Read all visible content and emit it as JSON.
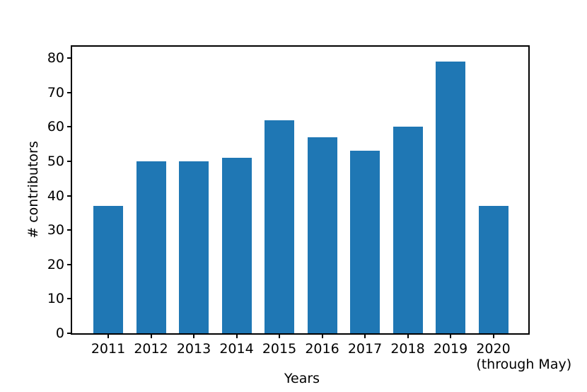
{
  "chart_data": {
    "type": "bar",
    "categories": [
      "2011",
      "2012",
      "2013",
      "2014",
      "2015",
      "2016",
      "2017",
      "2018",
      "2019",
      "2020"
    ],
    "values": [
      37,
      50,
      50,
      51,
      62,
      57,
      53,
      60,
      79,
      37
    ],
    "last_category_note": "(through May)",
    "title": "",
    "xlabel": "Years",
    "ylabel": "# contributors",
    "yticks": [
      0,
      10,
      20,
      30,
      40,
      50,
      60,
      70,
      80
    ],
    "ylim": [
      0,
      83.3
    ],
    "grid": false,
    "legend": null,
    "bar_color": "#1f77b4",
    "axis_color": "#000000",
    "background_color": "#ffffff"
  }
}
